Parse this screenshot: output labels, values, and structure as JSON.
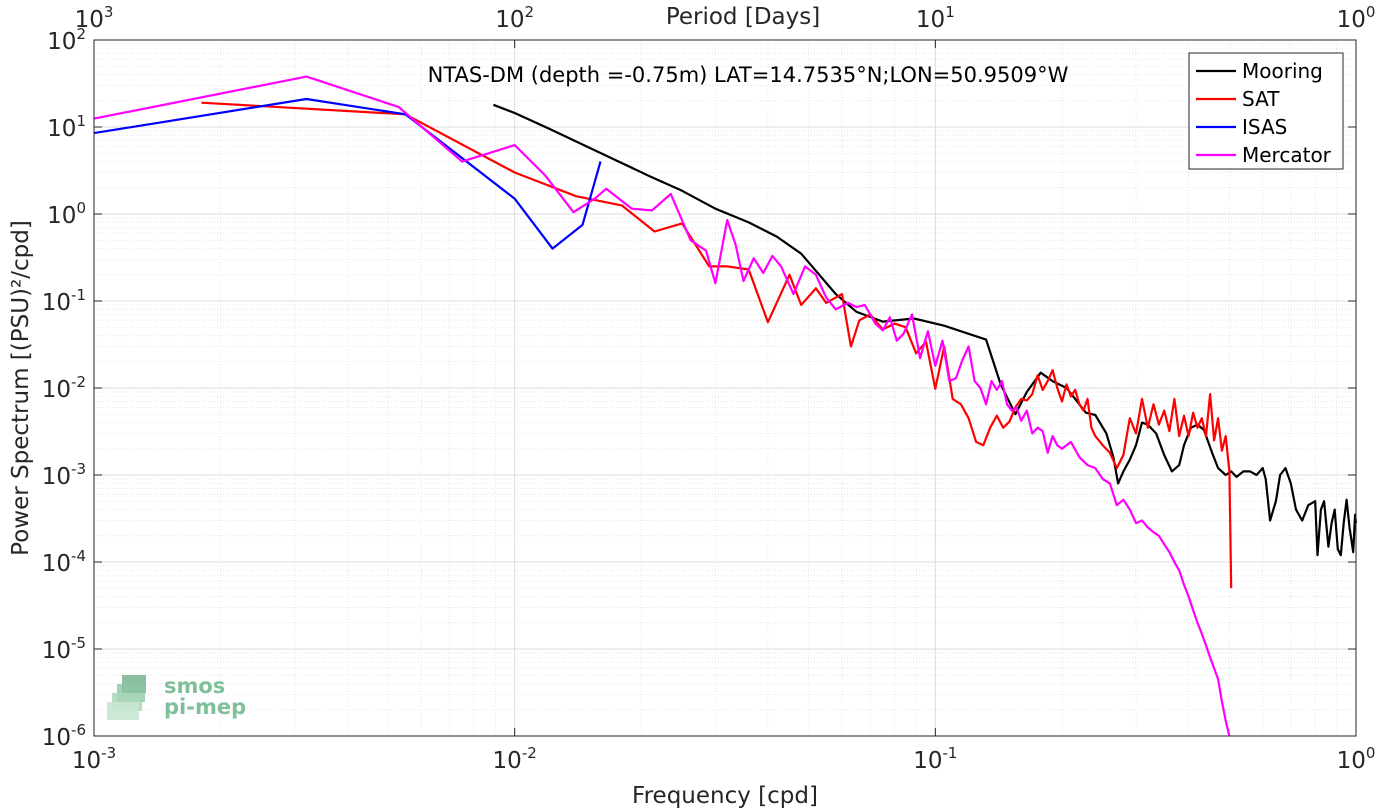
{
  "chart_data": {
    "type": "line",
    "title": "NTAS-DM (depth =-0.75m) LAT=14.7535°N;LON=50.9509°W",
    "xlabel": "Frequency [cpd]",
    "ylabel": "Power Spectrum [(PSU)²/cpd]",
    "top_xlabel": "Period [Days]",
    "xscale": "log",
    "yscale": "log",
    "xlim": [
      0.001,
      1
    ],
    "ylim": [
      1e-06,
      100
    ],
    "grid": true,
    "legend_position": "top-right",
    "x_ticks": [
      {
        "base": "10",
        "exp": "-3",
        "value": 0.001
      },
      {
        "base": "10",
        "exp": "-2",
        "value": 0.01
      },
      {
        "base": "10",
        "exp": "-1",
        "value": 0.1
      },
      {
        "base": "10",
        "exp": "0",
        "value": 1
      }
    ],
    "top_ticks": [
      {
        "base": "10",
        "exp": "3",
        "value": 0.001
      },
      {
        "base": "10",
        "exp": "2",
        "value": 0.01
      },
      {
        "base": "10",
        "exp": "1",
        "value": 0.1
      },
      {
        "base": "10",
        "exp": "0",
        "value": 1
      }
    ],
    "y_ticks": [
      {
        "base": "10",
        "exp": "2",
        "value": 100
      },
      {
        "base": "10",
        "exp": "1",
        "value": 10
      },
      {
        "base": "10",
        "exp": "0",
        "value": 1
      },
      {
        "base": "10",
        "exp": "-1",
        "value": 0.1
      },
      {
        "base": "10",
        "exp": "-2",
        "value": 0.01
      },
      {
        "base": "10",
        "exp": "-3",
        "value": 0.001
      },
      {
        "base": "10",
        "exp": "-4",
        "value": 0.0001
      },
      {
        "base": "10",
        "exp": "-5",
        "value": 1e-05
      },
      {
        "base": "10",
        "exp": "-6",
        "value": 1e-06
      }
    ],
    "series": [
      {
        "name": "Mooring",
        "color": "#000000",
        "points": [
          [
            0.0089,
            18
          ],
          [
            0.01,
            14.5
          ],
          [
            0.0121,
            9.5
          ],
          [
            0.0145,
            6.3
          ],
          [
            0.0175,
            4.1
          ],
          [
            0.021,
            2.7
          ],
          [
            0.025,
            1.85
          ],
          [
            0.03,
            1.15
          ],
          [
            0.036,
            0.8
          ],
          [
            0.042,
            0.55
          ],
          [
            0.048,
            0.35
          ],
          [
            0.053,
            0.2
          ],
          [
            0.058,
            0.12
          ],
          [
            0.065,
            0.075
          ],
          [
            0.075,
            0.058
          ],
          [
            0.089,
            0.063
          ],
          [
            0.105,
            0.052
          ],
          [
            0.12,
            0.042
          ],
          [
            0.132,
            0.036
          ],
          [
            0.143,
            0.011
          ],
          [
            0.155,
            0.005
          ],
          [
            0.165,
            0.009
          ],
          [
            0.178,
            0.015
          ],
          [
            0.19,
            0.012
          ],
          [
            0.205,
            0.01
          ],
          [
            0.215,
            0.0075
          ],
          [
            0.228,
            0.0052
          ],
          [
            0.24,
            0.0049
          ],
          [
            0.255,
            0.003
          ],
          [
            0.265,
            0.0016
          ],
          [
            0.272,
            0.0008
          ],
          [
            0.28,
            0.0011
          ],
          [
            0.29,
            0.0015
          ],
          [
            0.3,
            0.0022
          ],
          [
            0.31,
            0.004
          ],
          [
            0.32,
            0.0038
          ],
          [
            0.335,
            0.003
          ],
          [
            0.35,
            0.0017
          ],
          [
            0.365,
            0.0011
          ],
          [
            0.38,
            0.0013
          ],
          [
            0.39,
            0.0022
          ],
          [
            0.405,
            0.0035
          ],
          [
            0.42,
            0.0038
          ],
          [
            0.435,
            0.0033
          ],
          [
            0.455,
            0.0018
          ],
          [
            0.47,
            0.0012
          ],
          [
            0.49,
            0.001
          ],
          [
            0.505,
            0.0011
          ],
          [
            0.52,
            0.00095
          ],
          [
            0.54,
            0.0011
          ],
          [
            0.56,
            0.0011
          ],
          [
            0.58,
            0.001
          ],
          [
            0.6,
            0.0012
          ],
          [
            0.61,
            0.0009
          ],
          [
            0.625,
            0.0003
          ],
          [
            0.645,
            0.0005
          ],
          [
            0.66,
            0.001
          ],
          [
            0.68,
            0.0012
          ],
          [
            0.7,
            0.0008
          ],
          [
            0.72,
            0.0004
          ],
          [
            0.745,
            0.0003
          ],
          [
            0.77,
            0.00045
          ],
          [
            0.8,
            0.0005
          ],
          [
            0.81,
            0.00012
          ],
          [
            0.825,
            0.0004
          ],
          [
            0.84,
            0.0005
          ],
          [
            0.86,
            0.00015
          ],
          [
            0.875,
            0.00028
          ],
          [
            0.89,
            0.0004
          ],
          [
            0.905,
            0.00014
          ],
          [
            0.92,
            0.00012
          ],
          [
            0.935,
            0.00028
          ],
          [
            0.95,
            0.00052
          ],
          [
            0.965,
            0.00025
          ],
          [
            0.975,
            0.00018
          ],
          [
            0.985,
            0.00013
          ],
          [
            0.995,
            0.00035
          ],
          [
            1.0,
            0.00028
          ]
        ]
      },
      {
        "name": "SAT",
        "color": "#ff0000",
        "points": [
          [
            0.0018,
            19
          ],
          [
            0.0055,
            14
          ],
          [
            0.01,
            3.0
          ],
          [
            0.014,
            1.6
          ],
          [
            0.018,
            1.25
          ],
          [
            0.0215,
            0.63
          ],
          [
            0.025,
            0.78
          ],
          [
            0.029,
            0.25
          ],
          [
            0.032,
            0.25
          ],
          [
            0.036,
            0.23
          ],
          [
            0.04,
            0.057
          ],
          [
            0.045,
            0.2
          ],
          [
            0.048,
            0.09
          ],
          [
            0.052,
            0.14
          ],
          [
            0.055,
            0.095
          ],
          [
            0.06,
            0.12
          ],
          [
            0.063,
            0.03
          ],
          [
            0.066,
            0.06
          ],
          [
            0.07,
            0.07
          ],
          [
            0.075,
            0.047
          ],
          [
            0.08,
            0.055
          ],
          [
            0.085,
            0.05
          ],
          [
            0.09,
            0.025
          ],
          [
            0.095,
            0.034
          ],
          [
            0.1,
            0.0098
          ],
          [
            0.105,
            0.03
          ],
          [
            0.11,
            0.0075
          ],
          [
            0.115,
            0.0065
          ],
          [
            0.12,
            0.0045
          ],
          [
            0.125,
            0.0024
          ],
          [
            0.13,
            0.0022
          ],
          [
            0.135,
            0.0035
          ],
          [
            0.14,
            0.0048
          ],
          [
            0.145,
            0.0035
          ],
          [
            0.15,
            0.0041
          ],
          [
            0.155,
            0.006
          ],
          [
            0.16,
            0.0075
          ],
          [
            0.165,
            0.0072
          ],
          [
            0.17,
            0.0085
          ],
          [
            0.175,
            0.014
          ],
          [
            0.18,
            0.0095
          ],
          [
            0.185,
            0.012
          ],
          [
            0.19,
            0.016
          ],
          [
            0.195,
            0.01
          ],
          [
            0.2,
            0.007
          ],
          [
            0.205,
            0.011
          ],
          [
            0.21,
            0.008
          ],
          [
            0.215,
            0.0095
          ],
          [
            0.22,
            0.0065
          ],
          [
            0.225,
            0.0055
          ],
          [
            0.23,
            0.0075
          ],
          [
            0.235,
            0.0035
          ],
          [
            0.24,
            0.0028
          ],
          [
            0.25,
            0.0022
          ],
          [
            0.26,
            0.0018
          ],
          [
            0.27,
            0.0012
          ],
          [
            0.28,
            0.0017
          ],
          [
            0.29,
            0.0045
          ],
          [
            0.3,
            0.003
          ],
          [
            0.31,
            0.0075
          ],
          [
            0.32,
            0.0035
          ],
          [
            0.33,
            0.0065
          ],
          [
            0.34,
            0.0038
          ],
          [
            0.35,
            0.0055
          ],
          [
            0.36,
            0.0032
          ],
          [
            0.37,
            0.0075
          ],
          [
            0.38,
            0.0028
          ],
          [
            0.39,
            0.0048
          ],
          [
            0.4,
            0.0028
          ],
          [
            0.41,
            0.0052
          ],
          [
            0.42,
            0.0035
          ],
          [
            0.43,
            0.0045
          ],
          [
            0.44,
            0.0028
          ],
          [
            0.45,
            0.0085
          ],
          [
            0.46,
            0.0025
          ],
          [
            0.47,
            0.0045
          ],
          [
            0.48,
            0.0019
          ],
          [
            0.49,
            0.0028
          ],
          [
            0.5,
            0.0011
          ],
          [
            0.505,
            5e-05
          ]
        ]
      },
      {
        "name": "ISAS",
        "color": "#0000ff",
        "points": [
          [
            0.001,
            8.5
          ],
          [
            0.0032,
            21
          ],
          [
            0.0055,
            14
          ],
          [
            0.01,
            1.5
          ],
          [
            0.0123,
            0.4
          ],
          [
            0.0145,
            0.75
          ],
          [
            0.016,
            4.0
          ]
        ]
      },
      {
        "name": "Mercator",
        "color": "#ff00ff",
        "points": [
          [
            0.001,
            12.5
          ],
          [
            0.0032,
            38
          ],
          [
            0.0053,
            17
          ],
          [
            0.0075,
            4.0
          ],
          [
            0.01,
            6.2
          ],
          [
            0.0118,
            2.8
          ],
          [
            0.0138,
            1.05
          ],
          [
            0.0155,
            1.5
          ],
          [
            0.0165,
            1.95
          ],
          [
            0.019,
            1.15
          ],
          [
            0.0212,
            1.1
          ],
          [
            0.0235,
            1.7
          ],
          [
            0.0262,
            0.5
          ],
          [
            0.0285,
            0.38
          ],
          [
            0.03,
            0.16
          ],
          [
            0.032,
            0.85
          ],
          [
            0.0335,
            0.45
          ],
          [
            0.035,
            0.17
          ],
          [
            0.037,
            0.31
          ],
          [
            0.039,
            0.21
          ],
          [
            0.041,
            0.33
          ],
          [
            0.043,
            0.25
          ],
          [
            0.046,
            0.12
          ],
          [
            0.049,
            0.25
          ],
          [
            0.052,
            0.2
          ],
          [
            0.055,
            0.11
          ],
          [
            0.058,
            0.08
          ],
          [
            0.062,
            0.095
          ],
          [
            0.065,
            0.085
          ],
          [
            0.068,
            0.09
          ],
          [
            0.072,
            0.055
          ],
          [
            0.075,
            0.046
          ],
          [
            0.078,
            0.065
          ],
          [
            0.081,
            0.035
          ],
          [
            0.084,
            0.042
          ],
          [
            0.088,
            0.07
          ],
          [
            0.092,
            0.022
          ],
          [
            0.096,
            0.045
          ],
          [
            0.1,
            0.018
          ],
          [
            0.104,
            0.035
          ],
          [
            0.108,
            0.012
          ],
          [
            0.112,
            0.013
          ],
          [
            0.116,
            0.021
          ],
          [
            0.12,
            0.03
          ],
          [
            0.124,
            0.012
          ],
          [
            0.128,
            0.01
          ],
          [
            0.132,
            0.0065
          ],
          [
            0.136,
            0.012
          ],
          [
            0.14,
            0.0095
          ],
          [
            0.144,
            0.012
          ],
          [
            0.148,
            0.0065
          ],
          [
            0.152,
            0.0055
          ],
          [
            0.156,
            0.006
          ],
          [
            0.16,
            0.0042
          ],
          [
            0.165,
            0.0055
          ],
          [
            0.17,
            0.003
          ],
          [
            0.175,
            0.0035
          ],
          [
            0.18,
            0.0032
          ],
          [
            0.185,
            0.0018
          ],
          [
            0.19,
            0.0028
          ],
          [
            0.195,
            0.0022
          ],
          [
            0.2,
            0.002
          ],
          [
            0.21,
            0.0024
          ],
          [
            0.22,
            0.0016
          ],
          [
            0.23,
            0.0013
          ],
          [
            0.24,
            0.0012
          ],
          [
            0.25,
            0.0009
          ],
          [
            0.26,
            0.0008
          ],
          [
            0.27,
            0.00045
          ],
          [
            0.28,
            0.00052
          ],
          [
            0.29,
            0.0004
          ],
          [
            0.3,
            0.00028
          ],
          [
            0.31,
            0.0003
          ],
          [
            0.32,
            0.00025
          ],
          [
            0.33,
            0.00022
          ],
          [
            0.34,
            0.0002
          ],
          [
            0.35,
            0.00016
          ],
          [
            0.36,
            0.00013
          ],
          [
            0.37,
            0.0001
          ],
          [
            0.38,
            8e-05
          ],
          [
            0.39,
            5.5e-05
          ],
          [
            0.4,
            4e-05
          ],
          [
            0.41,
            2.8e-05
          ],
          [
            0.42,
            2e-05
          ],
          [
            0.43,
            1.5e-05
          ],
          [
            0.44,
            1.1e-05
          ],
          [
            0.45,
            8e-06
          ],
          [
            0.46,
            6e-06
          ],
          [
            0.47,
            4.5e-06
          ],
          [
            0.48,
            2.5e-06
          ],
          [
            0.49,
            1.5e-06
          ],
          [
            0.5,
            1e-06
          ]
        ]
      }
    ]
  },
  "logo": {
    "line1": "smos",
    "line2": "pi-mep"
  }
}
